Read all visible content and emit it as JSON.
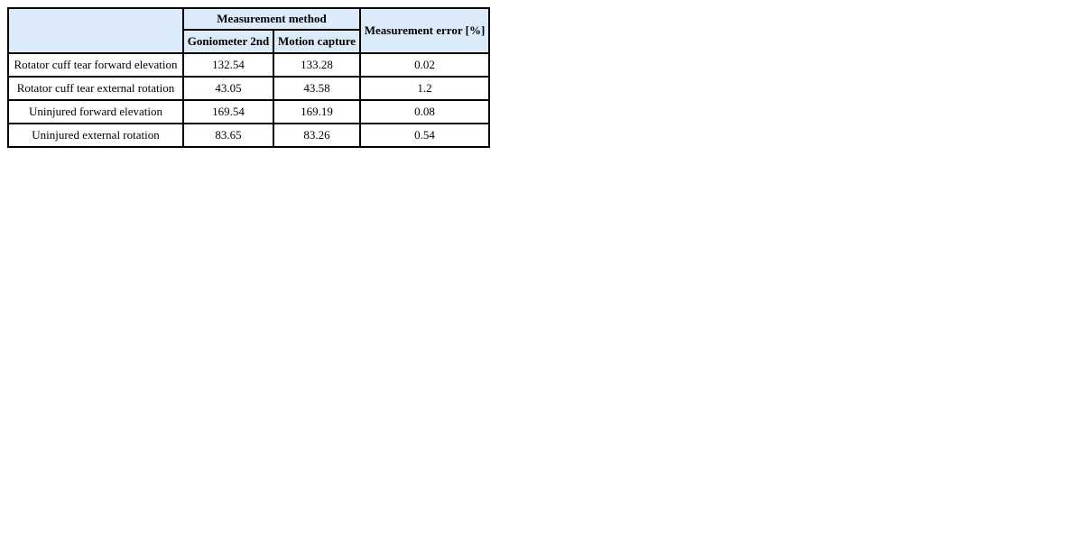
{
  "table": {
    "header": {
      "corner": "",
      "method_group": "Measurement method",
      "col_goniometer": "Goniometer 2nd",
      "col_motion": "Motion capture",
      "col_error": "Measurement error [%]"
    },
    "rows": [
      {
        "label": "Rotator cuff tear forward elevation",
        "goniometer": "132.54",
        "motion": "133.28",
        "error": "0.02"
      },
      {
        "label": "Rotator cuff tear external rotation",
        "goniometer": "43.05",
        "motion": "43.58",
        "error": "1.2"
      },
      {
        "label": "Uninjured forward elevation",
        "goniometer": "169.54",
        "motion": "169.19",
        "error": "0.08"
      },
      {
        "label": "Uninjured external rotation",
        "goniometer": "83.65",
        "motion": "83.26",
        "error": "0.54"
      }
    ],
    "style": {
      "header_bg": "#dcebfa",
      "border_color": "#000000",
      "body_bg": "#ffffff"
    }
  },
  "chart_data": {
    "type": "table",
    "title": "",
    "column_groups": [
      {
        "label": "Measurement method",
        "columns": [
          "Goniometer 2nd",
          "Motion capture"
        ]
      }
    ],
    "columns": [
      "",
      "Goniometer 2nd",
      "Motion capture",
      "Measurement error [%]"
    ],
    "rows": [
      [
        "Rotator cuff tear forward elevation",
        132.54,
        133.28,
        0.02
      ],
      [
        "Rotator cuff tear external rotation",
        43.05,
        43.58,
        1.2
      ],
      [
        "Uninjured forward elevation",
        169.54,
        169.19,
        0.08
      ],
      [
        "Uninjured external rotation",
        83.65,
        83.26,
        0.54
      ]
    ]
  }
}
